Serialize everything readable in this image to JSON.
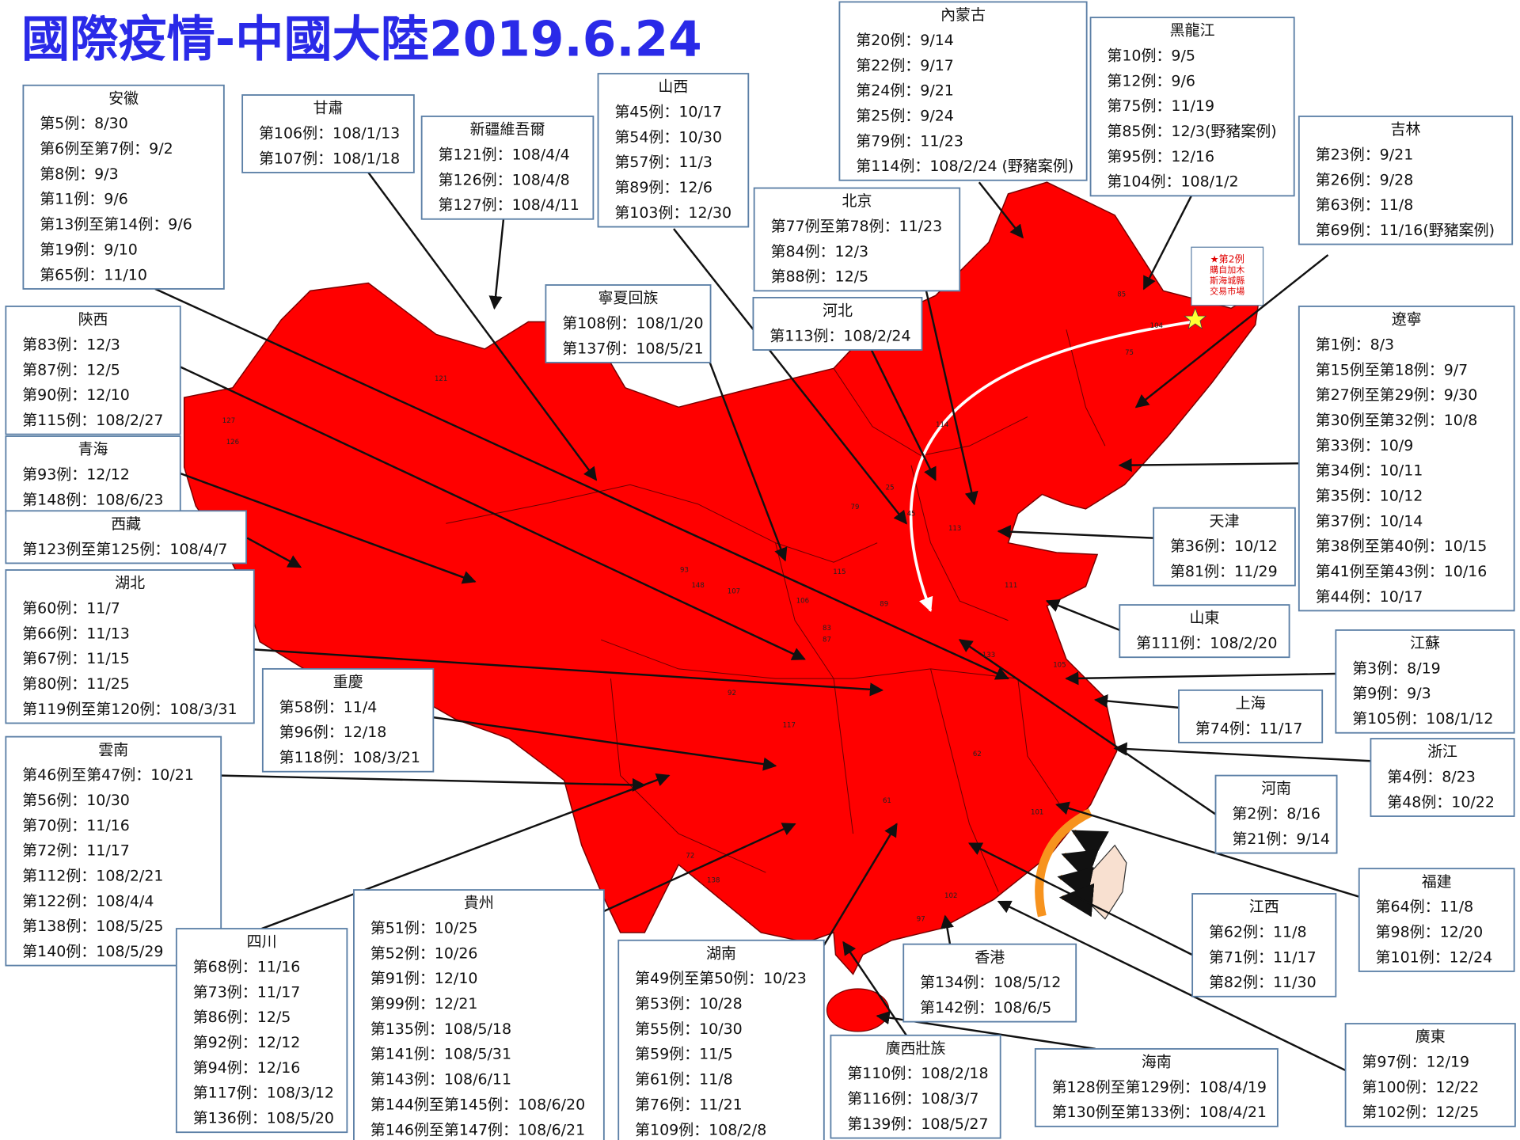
{
  "header": {
    "title": "國際疫情-中國大陸2019.6.24"
  },
  "note": [
    "★第2例",
    "購自加木",
    "斯海城縣",
    "交易市場"
  ],
  "map_labels": [
    "121",
    "127",
    "126",
    "93",
    "148",
    "107",
    "106",
    "83",
    "87",
    "115",
    "111",
    "105",
    "85",
    "104",
    "75",
    "114",
    "25",
    "79",
    "45",
    "113",
    "89",
    "117",
    "92",
    "133",
    "72",
    "138",
    "102",
    "97",
    "101",
    "62",
    "61"
  ],
  "boxes": [
    {
      "title": "安徽",
      "lines": [
        "第5例：8/30",
        "第6例至第7例：9/2",
        "第8例：9/3",
        "第11例：9/6",
        "第13例至第14例：9/6",
        "第19例：9/10",
        "第65例：11/10"
      ]
    },
    {
      "title": "甘肅",
      "lines": [
        "第106例：108/1/13",
        "第107例：108/1/18"
      ]
    },
    {
      "title": "新疆維吾爾",
      "lines": [
        "第121例：108/4/4",
        "第126例：108/4/8",
        "第127例：108/4/11"
      ]
    },
    {
      "title": "山西",
      "lines": [
        "第45例：10/17",
        "第54例：10/30",
        "第57例：11/3",
        "第89例：12/6",
        "第103例：12/30"
      ]
    },
    {
      "title": "內蒙古",
      "lines": [
        "第20例：9/14",
        "第22例：9/17",
        "第24例：9/21",
        "第25例：9/24",
        "第79例：11/23",
        "第114例：108/2/24 (野豬案例)"
      ]
    },
    {
      "title": "黑龍江",
      "lines": [
        "第10例：9/5",
        "第12例：9/6",
        "第75例：11/19",
        "第85例：12/3(野豬案例)",
        "第95例：12/16",
        "第104例：108/1/2"
      ]
    },
    {
      "title": "吉林",
      "lines": [
        "第23例：9/21",
        "第26例：9/28",
        "第63例：11/8",
        "第69例：11/16(野豬案例)"
      ]
    },
    {
      "title": "北京",
      "lines": [
        "第77例至第78例：11/23",
        "第84例：12/3",
        "第88例：12/5"
      ]
    },
    {
      "title": "寧夏回族",
      "lines": [
        "第108例：108/1/20",
        "第137例：108/5/21"
      ]
    },
    {
      "title": "河北",
      "lines": [
        "第113例：108/2/24"
      ]
    },
    {
      "title": "陝西",
      "lines": [
        "第83例：12/3",
        "第87例：12/5",
        "第90例：12/10",
        "第115例：108/2/27"
      ]
    },
    {
      "title": "青海",
      "lines": [
        "第93例：12/12",
        {
          "text": "第148例：108/6/23",
          "color": "#e02020"
        }
      ]
    },
    {
      "title": "西藏",
      "lines": [
        "第123例至第125例：108/4/7"
      ]
    },
    {
      "title": "湖北",
      "lines": [
        "第60例：11/7",
        "第66例：11/13",
        "第67例：11/15",
        "第80例：11/25",
        "第119例至第120例：108/3/31"
      ]
    },
    {
      "title": "重慶",
      "lines": [
        "第58例：11/4",
        "第96例：12/18",
        "第118例：108/3/21"
      ]
    },
    {
      "title": "雲南",
      "lines": [
        "第46例至第47例：10/21",
        "第56例：10/30",
        "第70例：11/16",
        "第72例：11/17",
        "第112例：108/2/21",
        "第122例：108/4/4",
        "第138例：108/5/25",
        "第140例：108/5/29"
      ]
    },
    {
      "title": "四川",
      "lines": [
        "第68例：11/16",
        "第73例：11/17",
        "第86例：12/5",
        "第92例：12/12",
        "第94例：12/16",
        "第117例：108/3/12",
        "第136例：108/5/20"
      ]
    },
    {
      "title": "貴州",
      "lines": [
        "第51例：10/25",
        "第52例：10/26",
        "第91例：12/10",
        "第99例：12/21",
        "第135例：108/5/18",
        "第141例：108/5/31",
        "第143例：108/6/11",
        "第144例至第145例：108/6/20",
        {
          "text": "第146例至第147例：108/6/21",
          "color": "#e02020"
        }
      ]
    },
    {
      "title": "湖南",
      "lines": [
        "第49例至第50例：10/23",
        "第53例：10/28",
        "第55例：10/30",
        "第59例：11/5",
        "第61例：11/8",
        "第76例：11/21",
        "第109例：108/2/8"
      ]
    },
    {
      "title": "廣西壯族",
      "lines": [
        "第110例：108/2/18",
        "第116例：108/3/7",
        "第139例：108/5/27"
      ]
    },
    {
      "title": "香港",
      "lines": [
        "第134例：108/5/12",
        "第142例：108/6/5"
      ]
    },
    {
      "title": "海南",
      "lines": [
        "第128例至第129例：108/4/19",
        "第130例至第133例：108/4/21"
      ]
    },
    {
      "title": "廣東",
      "lines": [
        "第97例：12/19",
        "第100例：12/22",
        "第102例：12/25"
      ]
    },
    {
      "title": "福建",
      "lines": [
        "第64例：11/8",
        "第98例：12/20",
        "第101例：12/24"
      ]
    },
    {
      "title": "江西",
      "lines": [
        "第62例：11/8",
        "第71例：11/17",
        "第82例：11/30"
      ]
    },
    {
      "title": "河南",
      "lines": [
        "第2例：8/16",
        "第21例：9/14"
      ]
    },
    {
      "title": "浙江",
      "lines": [
        "第4例：8/23",
        "第48例：10/22"
      ]
    },
    {
      "title": "上海",
      "lines": [
        "第74例：11/17"
      ]
    },
    {
      "title": "江蘇",
      "lines": [
        "第3例：8/19",
        "第9例：9/3",
        "第105例：108/1/12"
      ]
    },
    {
      "title": "山東",
      "lines": [
        "第111例：108/2/20"
      ]
    },
    {
      "title": "天津",
      "lines": [
        "第36例：10/12",
        "第81例：11/29"
      ]
    },
    {
      "title": "遼寧",
      "lines": [
        "第1例：8/3",
        "第15例至第18例：9/7",
        "第27例至第29例：9/30",
        "第30例至第32例：10/8",
        "第33例：10/9",
        "第34例：10/11",
        "第35例：10/12",
        "第37例：10/14",
        "第38例至第40例：10/15",
        "第41例至第43例：10/16",
        "第44例：10/17"
      ]
    }
  ]
}
